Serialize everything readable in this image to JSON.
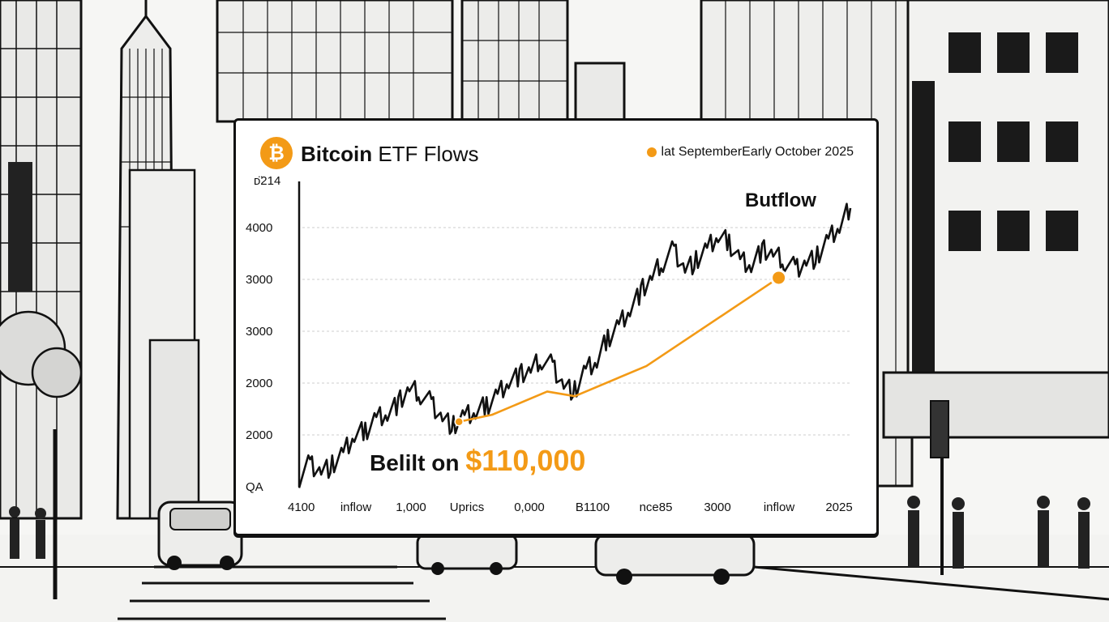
{
  "colors": {
    "accent": "#f39a16",
    "price_line": "#111111",
    "flow_line": "#f39a16",
    "grid": "#cccccc"
  },
  "header": {
    "logo_glyph": "₿",
    "title_bold": "Bitcoin",
    "title_rest": " ETF Flows",
    "legend_label": "lat SeptemberEarly October 2025"
  },
  "chart_data": {
    "type": "line",
    "title": "Bitcoin ETF Flows",
    "y_top_label": "ᴅ̈214",
    "y_tick_labels": [
      "4000",
      "3000",
      "3000",
      "2000",
      "2000",
      "QA"
    ],
    "x_tick_labels": [
      "4100",
      "inflow",
      "1,000",
      "Uprics",
      "0,000",
      "B1100",
      "nce85",
      "3000",
      "inflow",
      "2025"
    ],
    "grid": true,
    "legend_position": "top-right",
    "series": [
      {
        "name": "lat SeptemberEarly October 2025",
        "color": "#f39a16",
        "x": [
          0.29,
          0.35,
          0.45,
          0.5,
          0.63,
          0.87
        ],
        "y": [
          2200,
          2350,
          2850,
          2750,
          3400,
          5300
        ]
      },
      {
        "color": "#111111",
        "x": [
          0.0,
          0.02,
          0.04,
          0.06,
          0.08,
          0.1,
          0.12,
          0.14,
          0.16,
          0.18,
          0.2,
          0.22,
          0.24,
          0.26,
          0.28,
          0.3,
          0.32,
          0.34,
          0.36,
          0.38,
          0.4,
          0.42,
          0.44,
          0.46,
          0.48,
          0.5,
          0.52,
          0.54,
          0.56,
          0.58,
          0.6,
          0.62,
          0.64,
          0.66,
          0.68,
          0.7,
          0.72,
          0.74,
          0.76,
          0.78,
          0.8,
          0.82,
          0.84,
          0.86,
          0.88,
          0.9,
          0.92,
          0.94,
          0.96,
          0.98,
          1.0
        ],
        "y": [
          1000,
          1300,
          1150,
          1250,
          1500,
          1900,
          2000,
          2300,
          2400,
          2600,
          2900,
          2800,
          2600,
          2300,
          2100,
          2300,
          2400,
          2550,
          2800,
          3100,
          3200,
          3300,
          3550,
          3400,
          3000,
          2850,
          3300,
          3500,
          4000,
          4300,
          4650,
          5000,
          5300,
          5650,
          5900,
          5500,
          5650,
          5900,
          6200,
          6050,
          5700,
          5600,
          5900,
          5800,
          5650,
          5500,
          5650,
          5750,
          6100,
          6400,
          6800
        ]
      }
    ],
    "annotations": {
      "outflow": "Butflow",
      "inline_a": "Belilt on ",
      "inline_b": "$110,000"
    }
  }
}
